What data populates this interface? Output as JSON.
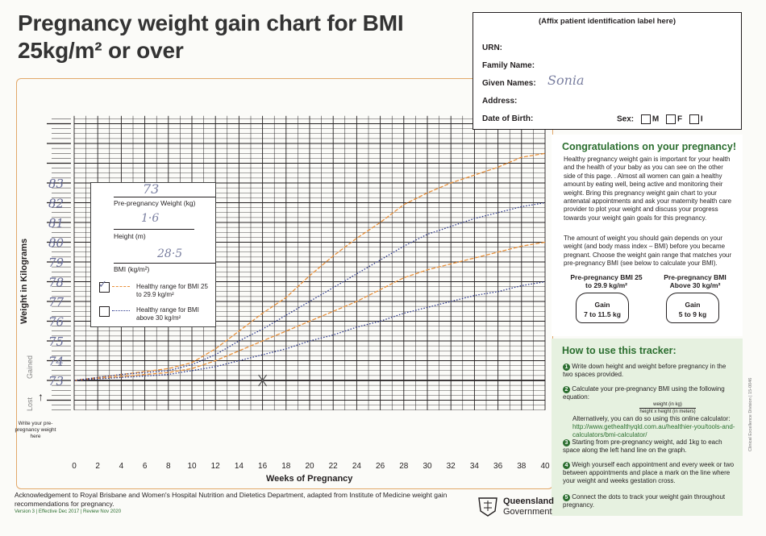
{
  "title_line1": "Pregnancy weight gain chart for BMI",
  "title_line2": "25kg/m² or over",
  "id_box": {
    "header": "(Affix patient identification label here)",
    "urn": "URN:",
    "family_name": "Family Name:",
    "given_names": "Given Names:",
    "given_names_value": "Sonia",
    "address": "Address:",
    "dob": "Date of Birth:",
    "sex": "Sex:",
    "sex_m": "M",
    "sex_f": "F",
    "sex_i": "I"
  },
  "info": {
    "heading": "Congratulations on your pregnancy!",
    "para1": "Healthy pregnancy weight gain is important for your health and the health of your baby as you can see on the other side of this page. . Almost all women can gain a healthy amount by eating well, being active and monitoring their weight. Bring this pregnancy weight gain chart to your antenatal appointments and ask your maternity health care provider to plot your weight and discuss your progress towards your weight gain goals for this pregnancy.",
    "para2": "The amount of weight you should gain depends on your weight (and body mass index – BMI) before you became pregnant. Choose the weight gain range that matches your pre-pregnancy BMI (see below to calculate your BMI).",
    "gauge1_title": "Pre-pregnancy BMI 25 to 29.9 kg/m²",
    "gauge1_label": "Gain",
    "gauge1_value": "7 to 11.5 kg",
    "gauge2_title": "Pre-pregnancy BMI Above 30 kg/m²",
    "gauge2_label": "Gain",
    "gauge2_value": "5 to 9 kg"
  },
  "howto": {
    "heading": "How to use this tracker:",
    "step1": "Write down height and weight before pregnancy in the two spaces provided.",
    "step2": "Calculate your pre-pregnancy BMI using the following equation:",
    "step2_num": "weight (in kg)",
    "step2_den": "height x height (in meters)",
    "step2_alt": "Alternatively, you can do so using this online calculator:",
    "step2_url": "http://www.gethealthyqld.com.au/healthier-you/tools-and-calculators/bmi-calculator/",
    "step3": "Starting from pre-pregnancy weight, add 1kg to each space along the left hand line on the graph.",
    "step4": "Weigh yourself each appointment and every week or two between appointments and place a mark on the line where your weight and weeks gestation cross.",
    "step5": "Connect the dots to track your weight gain throughout pregnancy."
  },
  "legend": {
    "weight_value": "73",
    "weight_label": "Pre-pregnancy Weight (kg)",
    "height_value": "1·6",
    "height_label": "Height (m)",
    "bmi_value": "28·5",
    "bmi_label": "BMI (kg/m²)",
    "range1": "Healthy range for BMI 25 to 29.9 kg/m²",
    "range2": "Healthy range for BMI above 30 kg/m²"
  },
  "axis": {
    "y_title": "Weight in Kilograms",
    "gained": "Gained",
    "lost": "Lost",
    "write_weight": "Write your pre-pregnancy weight here",
    "x_title": "Weeks of Pregnancy"
  },
  "handwritten_weights": [
    "73",
    "74",
    "75",
    "76",
    "77",
    "78",
    "79",
    "80",
    "81",
    "82",
    "83"
  ],
  "footer": "Acknowledgement to Royal Brisbane and Women's Hospital Nutrition and Dietetics Department, adapted from Institute of Medicine weight gain recommendations for pregnancy.",
  "version": "Version 3 | Effective Dec 2017 | Review Nov 2020",
  "logo_text_1": "Queensland",
  "logo_text_2": "Government",
  "side_text": "Clinical Excellence Division | 15-0046",
  "colors": {
    "orange": "#e8903a",
    "navy": "#2e3a8c",
    "green": "#2b6e2f"
  },
  "chart_data": {
    "type": "line",
    "x_ticks": [
      0,
      2,
      4,
      6,
      8,
      10,
      12,
      14,
      16,
      18,
      20,
      22,
      24,
      26,
      28,
      30,
      32,
      34,
      36,
      38,
      40
    ],
    "xlabel": "Weeks of Pregnancy",
    "ylabel": "Weight in Kilograms",
    "xlim": [
      0,
      40
    ],
    "ylim": [
      -1.5,
      13
    ],
    "series": [
      {
        "name": "Healthy range for BMI 25 to 29.9 kg/m²",
        "style": "dashed-orange",
        "bound": "upper",
        "x": [
          0,
          4,
          8,
          10,
          12,
          14,
          16,
          18,
          20,
          22,
          24,
          26,
          28,
          30,
          32,
          34,
          36,
          38,
          40
        ],
        "y": [
          0,
          0.3,
          0.6,
          0.9,
          1.6,
          2.5,
          3.4,
          4.2,
          5.3,
          6.3,
          7.2,
          8.0,
          8.9,
          9.5,
          10.0,
          10.4,
          10.8,
          11.3,
          11.5
        ]
      },
      {
        "name": "Healthy range for BMI 25 to 29.9 kg/m²",
        "style": "dashed-orange",
        "bound": "lower",
        "x": [
          0,
          4,
          8,
          10,
          12,
          14,
          16,
          18,
          20,
          22,
          24,
          26,
          28,
          30,
          32,
          34,
          36,
          38,
          40
        ],
        "y": [
          0,
          0.2,
          0.4,
          0.6,
          1.0,
          1.5,
          2.0,
          2.5,
          3.0,
          3.5,
          4.0,
          4.6,
          5.2,
          5.6,
          5.9,
          6.2,
          6.5,
          6.8,
          7.0
        ]
      },
      {
        "name": "Healthy range for BMI above 30 kg/m²",
        "style": "dotted-navy",
        "bound": "upper",
        "x": [
          0,
          4,
          8,
          10,
          12,
          14,
          16,
          18,
          20,
          22,
          24,
          26,
          28,
          30,
          32,
          34,
          36,
          38,
          40
        ],
        "y": [
          0,
          0.3,
          0.5,
          0.8,
          1.3,
          2.0,
          2.6,
          3.3,
          4.0,
          4.7,
          5.4,
          6.1,
          6.8,
          7.4,
          7.8,
          8.2,
          8.5,
          8.8,
          9.0
        ]
      },
      {
        "name": "Healthy range for BMI above 30 kg/m²",
        "style": "dotted-navy",
        "bound": "lower",
        "x": [
          0,
          4,
          8,
          10,
          12,
          14,
          16,
          18,
          20,
          22,
          24,
          26,
          28,
          30,
          32,
          34,
          36,
          38,
          40
        ],
        "y": [
          0,
          0.15,
          0.3,
          0.5,
          0.7,
          1.0,
          1.3,
          1.6,
          2.0,
          2.3,
          2.7,
          3.0,
          3.4,
          3.7,
          4.0,
          4.3,
          4.5,
          4.8,
          5.0
        ]
      }
    ],
    "marks": [
      {
        "x": 16,
        "y": 0
      }
    ]
  }
}
